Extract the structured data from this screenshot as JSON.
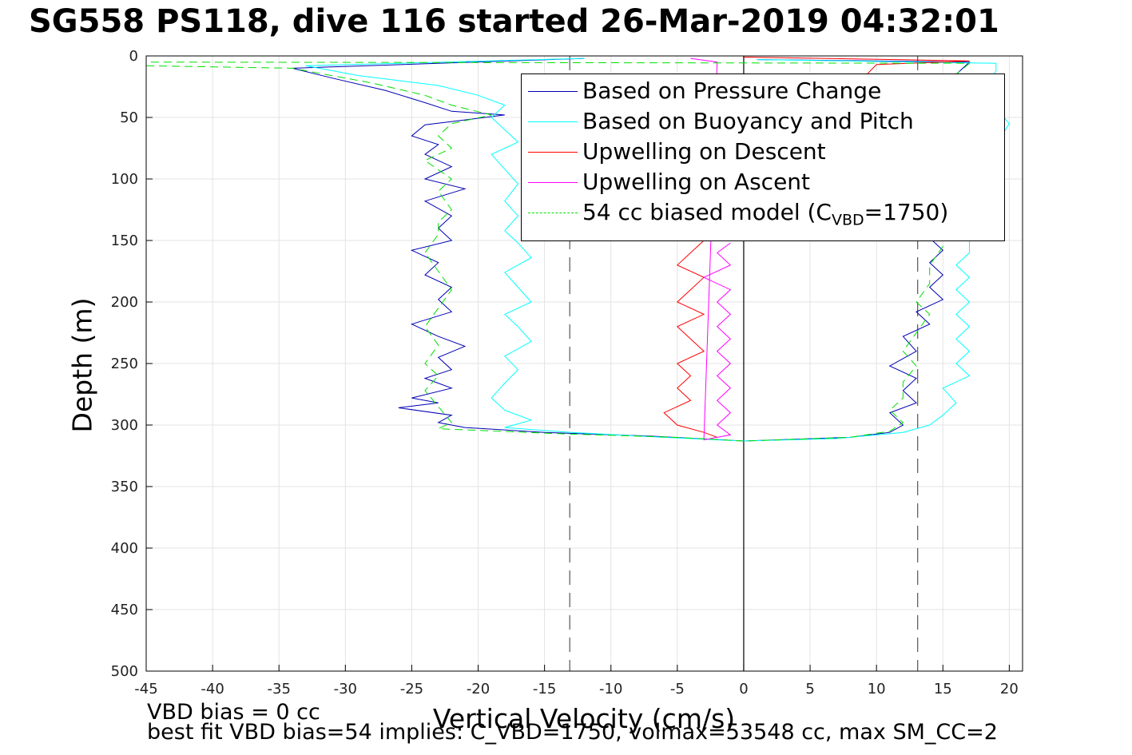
{
  "title": "SG558 PS118, dive 116 started 26-Mar-2019 04:32:01",
  "ylabel": "Depth (m)",
  "xlabel": "Vertical Velocity (cm/s)",
  "notes": [
    "VBD bias = 0 cc",
    "best fit VBD bias=54 implies: C_VBD=1750, volmax=53548 cc, max SM_CC=2"
  ],
  "legend": [
    {
      "label": "Based on Pressure Change",
      "color": "#0000b4",
      "dash": false
    },
    {
      "label": "Based on Buoyancy and Pitch",
      "color": "#00ffff",
      "dash": false
    },
    {
      "label": "Upwelling on Descent",
      "color": "#ff0000",
      "dash": false
    },
    {
      "label": "Upwelling on Ascent",
      "color": "#ff00ff",
      "dash": false
    },
    {
      "label_pre": "54 cc biased model (C",
      "label_sub": "VBD",
      "label_post": "=1750)",
      "color": "#00e000",
      "dash": true
    }
  ],
  "chart_data": {
    "type": "line",
    "title": "SG558 PS118, dive 116 started 26-Mar-2019 04:32:01",
    "xlabel": "Vertical Velocity (cm/s)",
    "ylabel": "Depth (m)",
    "xlim": [
      -45,
      21
    ],
    "ylim": [
      0,
      500
    ],
    "y_reversed": true,
    "xticks": [
      -45,
      -40,
      -35,
      -30,
      -25,
      -20,
      -15,
      -10,
      -5,
      0,
      5,
      10,
      15,
      20
    ],
    "yticks": [
      0,
      50,
      100,
      150,
      200,
      250,
      300,
      350,
      400,
      450,
      500
    ],
    "grid": true,
    "legend_position": "top-right",
    "reference_lines": [
      {
        "x": -13.1,
        "style": "dashed",
        "color": "#555555"
      },
      {
        "x": 13.1,
        "style": "dashed",
        "color": "#555555"
      },
      {
        "x": 0,
        "style": "solid",
        "color": "#000000"
      }
    ],
    "series": [
      {
        "name": "Based on Pressure Change",
        "color": "#0000b4",
        "points": [
          [
            -12,
            2
          ],
          [
            -34,
            10
          ],
          [
            -31,
            18
          ],
          [
            -27,
            28
          ],
          [
            -24,
            38
          ],
          [
            -22,
            45
          ],
          [
            -18,
            48
          ],
          [
            -21,
            52
          ],
          [
            -24,
            56
          ],
          [
            -25,
            65
          ],
          [
            -23,
            72
          ],
          [
            -24,
            80
          ],
          [
            -22,
            90
          ],
          [
            -24,
            100
          ],
          [
            -21,
            108
          ],
          [
            -24,
            118
          ],
          [
            -22,
            130
          ],
          [
            -23,
            140
          ],
          [
            -22,
            150
          ],
          [
            -25,
            158
          ],
          [
            -23,
            168
          ],
          [
            -24,
            178
          ],
          [
            -22,
            188
          ],
          [
            -23,
            198
          ],
          [
            -22,
            208
          ],
          [
            -25,
            218
          ],
          [
            -23,
            228
          ],
          [
            -21,
            236
          ],
          [
            -23,
            245
          ],
          [
            -22,
            255
          ],
          [
            -24,
            262
          ],
          [
            -22,
            270
          ],
          [
            -25,
            278
          ],
          [
            -23,
            282
          ],
          [
            -26,
            286
          ],
          [
            -22,
            292
          ],
          [
            -23,
            298
          ],
          [
            -21,
            302
          ],
          [
            -15,
            306
          ],
          [
            -7,
            309
          ],
          [
            0,
            313
          ],
          [
            8,
            310
          ],
          [
            11,
            306
          ],
          [
            12,
            300
          ],
          [
            11,
            290
          ],
          [
            13,
            282
          ],
          [
            12,
            272
          ],
          [
            13,
            262
          ],
          [
            11,
            252
          ],
          [
            13,
            240
          ],
          [
            12,
            228
          ],
          [
            14,
            218
          ],
          [
            13,
            208
          ],
          [
            15,
            198
          ],
          [
            14,
            188
          ],
          [
            15,
            178
          ],
          [
            14,
            168
          ],
          [
            15,
            158
          ],
          [
            14,
            148
          ],
          [
            15,
            130
          ],
          [
            15,
            110
          ],
          [
            16,
            80
          ],
          [
            16,
            50
          ],
          [
            15,
            30
          ],
          [
            16,
            15
          ],
          [
            17,
            5
          ],
          [
            1,
            3
          ]
        ]
      },
      {
        "name": "Based on Buoyancy and Pitch",
        "color": "#00ffff",
        "points": [
          [
            -12,
            2
          ],
          [
            -33,
            8
          ],
          [
            -29,
            16
          ],
          [
            -23,
            24
          ],
          [
            -20,
            32
          ],
          [
            -18,
            40
          ],
          [
            -19,
            50
          ],
          [
            -18,
            60
          ],
          [
            -17,
            70
          ],
          [
            -19,
            80
          ],
          [
            -18,
            92
          ],
          [
            -17,
            104
          ],
          [
            -18,
            118
          ],
          [
            -17,
            130
          ],
          [
            -18,
            142
          ],
          [
            -17,
            152
          ],
          [
            -16,
            164
          ],
          [
            -18,
            176
          ],
          [
            -17,
            188
          ],
          [
            -16,
            200
          ],
          [
            -18,
            210
          ],
          [
            -17,
            220
          ],
          [
            -16,
            232
          ],
          [
            -18,
            244
          ],
          [
            -17,
            255
          ],
          [
            -18,
            266
          ],
          [
            -19,
            278
          ],
          [
            -18,
            288
          ],
          [
            -16,
            296
          ],
          [
            -18,
            302
          ],
          [
            -13,
            306
          ],
          [
            -6,
            310
          ],
          [
            0,
            313
          ],
          [
            7,
            311
          ],
          [
            12,
            306
          ],
          [
            14,
            300
          ],
          [
            15,
            292
          ],
          [
            16,
            282
          ],
          [
            15,
            270
          ],
          [
            17,
            260
          ],
          [
            16,
            250
          ],
          [
            17,
            240
          ],
          [
            16,
            230
          ],
          [
            17,
            220
          ],
          [
            16,
            210
          ],
          [
            17,
            200
          ],
          [
            16,
            190
          ],
          [
            17,
            180
          ],
          [
            16,
            170
          ],
          [
            17,
            160
          ],
          [
            17,
            145
          ],
          [
            18,
            120
          ],
          [
            18,
            90
          ],
          [
            20,
            55
          ],
          [
            18,
            30
          ],
          [
            19,
            12
          ],
          [
            19,
            6
          ],
          [
            1,
            3
          ]
        ]
      },
      {
        "name": "Upwelling on Descent",
        "color": "#ff0000",
        "points": [
          [
            0,
            1
          ],
          [
            17,
            4
          ],
          [
            10,
            7
          ],
          [
            -3,
            150
          ],
          [
            -4,
            160
          ],
          [
            -5,
            170
          ],
          [
            -3,
            180
          ],
          [
            -4,
            190
          ],
          [
            -5,
            200
          ],
          [
            -3,
            210
          ],
          [
            -5,
            220
          ],
          [
            -4,
            230
          ],
          [
            -3,
            240
          ],
          [
            -5,
            250
          ],
          [
            -4,
            260
          ],
          [
            -5,
            270
          ],
          [
            -4,
            280
          ],
          [
            -6,
            290
          ],
          [
            -5,
            300
          ],
          [
            -3,
            306
          ],
          [
            -2,
            310
          ]
        ]
      },
      {
        "name": "Upwelling on Ascent",
        "color": "#ff00ff",
        "points": [
          [
            -1,
            152
          ],
          [
            -2,
            160
          ],
          [
            -1,
            170
          ],
          [
            -3,
            180
          ],
          [
            -1,
            190
          ],
          [
            -2,
            200
          ],
          [
            -1,
            210
          ],
          [
            -2,
            220
          ],
          [
            -1,
            230
          ],
          [
            -2,
            240
          ],
          [
            -1,
            250
          ],
          [
            -2,
            260
          ],
          [
            -1,
            270
          ],
          [
            -2,
            280
          ],
          [
            -1,
            290
          ],
          [
            -2,
            300
          ],
          [
            -1,
            308
          ],
          [
            -3,
            312
          ],
          [
            -2,
            5
          ],
          [
            -4,
            2
          ]
        ]
      },
      {
        "name": "54 cc biased model (CVBD=1750)",
        "color": "#00e000",
        "dashed": true,
        "points": [
          [
            -45,
            8
          ],
          [
            -34,
            10
          ],
          [
            -28,
            22
          ],
          [
            -24,
            32
          ],
          [
            -22,
            40
          ],
          [
            -19,
            48
          ],
          [
            -22,
            55
          ],
          [
            -23,
            65
          ],
          [
            -22,
            75
          ],
          [
            -24,
            85
          ],
          [
            -22,
            100
          ],
          [
            -23,
            110
          ],
          [
            -22,
            125
          ],
          [
            -23,
            135
          ],
          [
            -23,
            145
          ],
          [
            -24,
            160
          ],
          [
            -23,
            175
          ],
          [
            -22,
            190
          ],
          [
            -23,
            205
          ],
          [
            -24,
            220
          ],
          [
            -23,
            235
          ],
          [
            -24,
            250
          ],
          [
            -23,
            260
          ],
          [
            -24,
            272
          ],
          [
            -23,
            285
          ],
          [
            -22,
            298
          ],
          [
            -23,
            303
          ],
          [
            -14,
            307
          ],
          [
            -5,
            310
          ],
          [
            0,
            313
          ],
          [
            8,
            310
          ],
          [
            11,
            305
          ],
          [
            12,
            298
          ],
          [
            11,
            288
          ],
          [
            12,
            278
          ],
          [
            12,
            265
          ],
          [
            13,
            252
          ],
          [
            12,
            240
          ],
          [
            13,
            225
          ],
          [
            14,
            210
          ],
          [
            13,
            200
          ],
          [
            14,
            185
          ],
          [
            14,
            170
          ],
          [
            15,
            155
          ],
          [
            15,
            130
          ],
          [
            16,
            100
          ],
          [
            16,
            70
          ],
          [
            16,
            40
          ],
          [
            16,
            15
          ],
          [
            17,
            6
          ],
          [
            -45,
            5
          ]
        ]
      }
    ]
  }
}
